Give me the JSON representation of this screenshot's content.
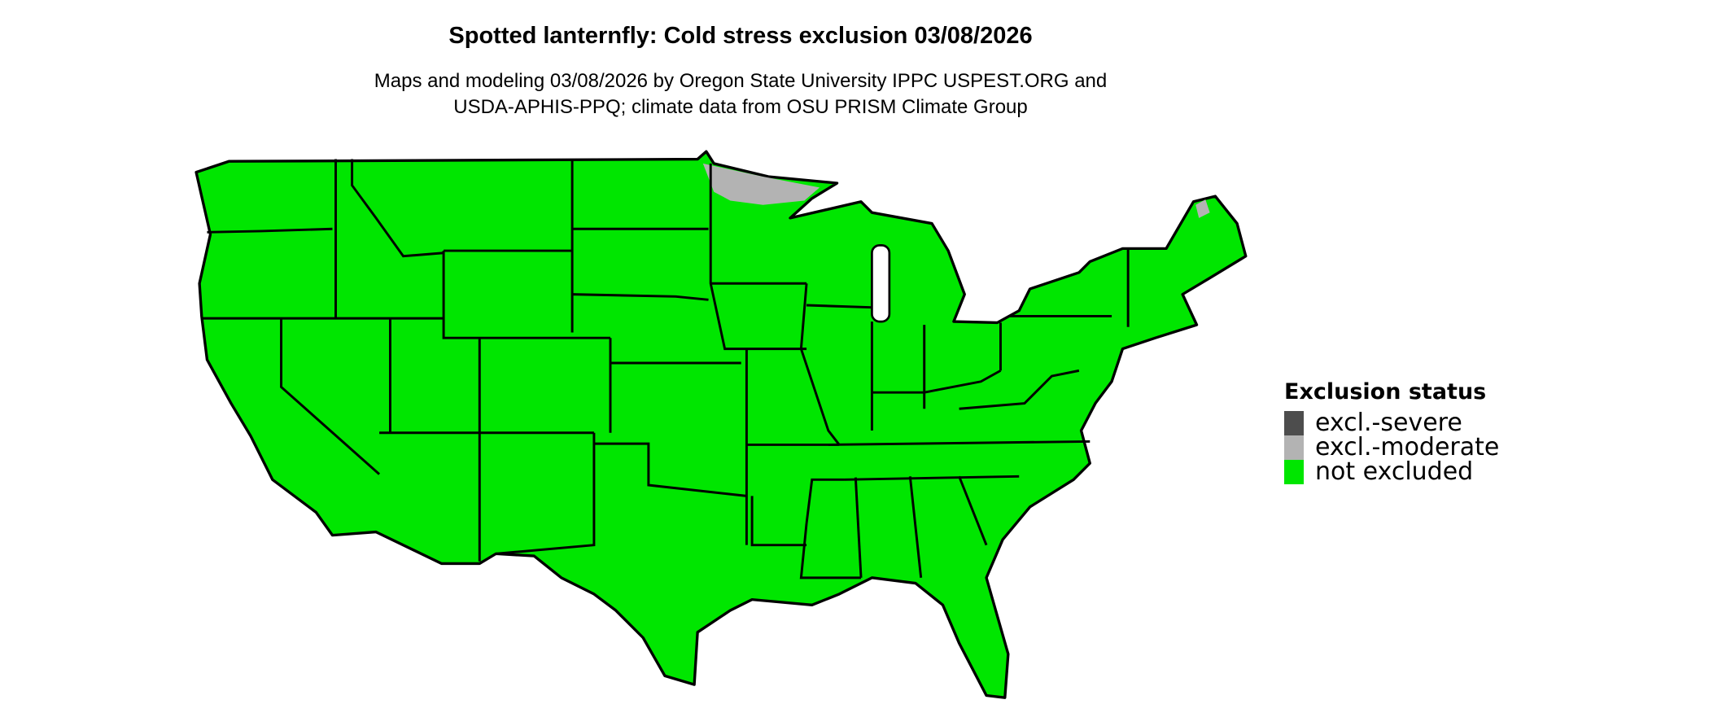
{
  "title": "Spotted lanternfly: Cold stress exclusion 03/08/2026",
  "subtitle_line1": "Maps and modeling 03/08/2026 by Oregon State University IPPC USPEST.ORG and",
  "subtitle_line2": "USDA-APHIS-PPQ; climate data from OSU PRISM Climate Group",
  "legend": {
    "title": "Exclusion status",
    "items": [
      {
        "label": "excl.-severe",
        "color": "#4d4d4d"
      },
      {
        "label": "excl.-moderate",
        "color": "#b3b3b3"
      },
      {
        "label": "not excluded",
        "color": "#00e600"
      }
    ]
  },
  "map": {
    "region": "Contiguous United States",
    "dominant_status": "not excluded",
    "moderate_exclusion_areas": [
      "northeastern Minnesota",
      "northern Maine (small)"
    ]
  }
}
